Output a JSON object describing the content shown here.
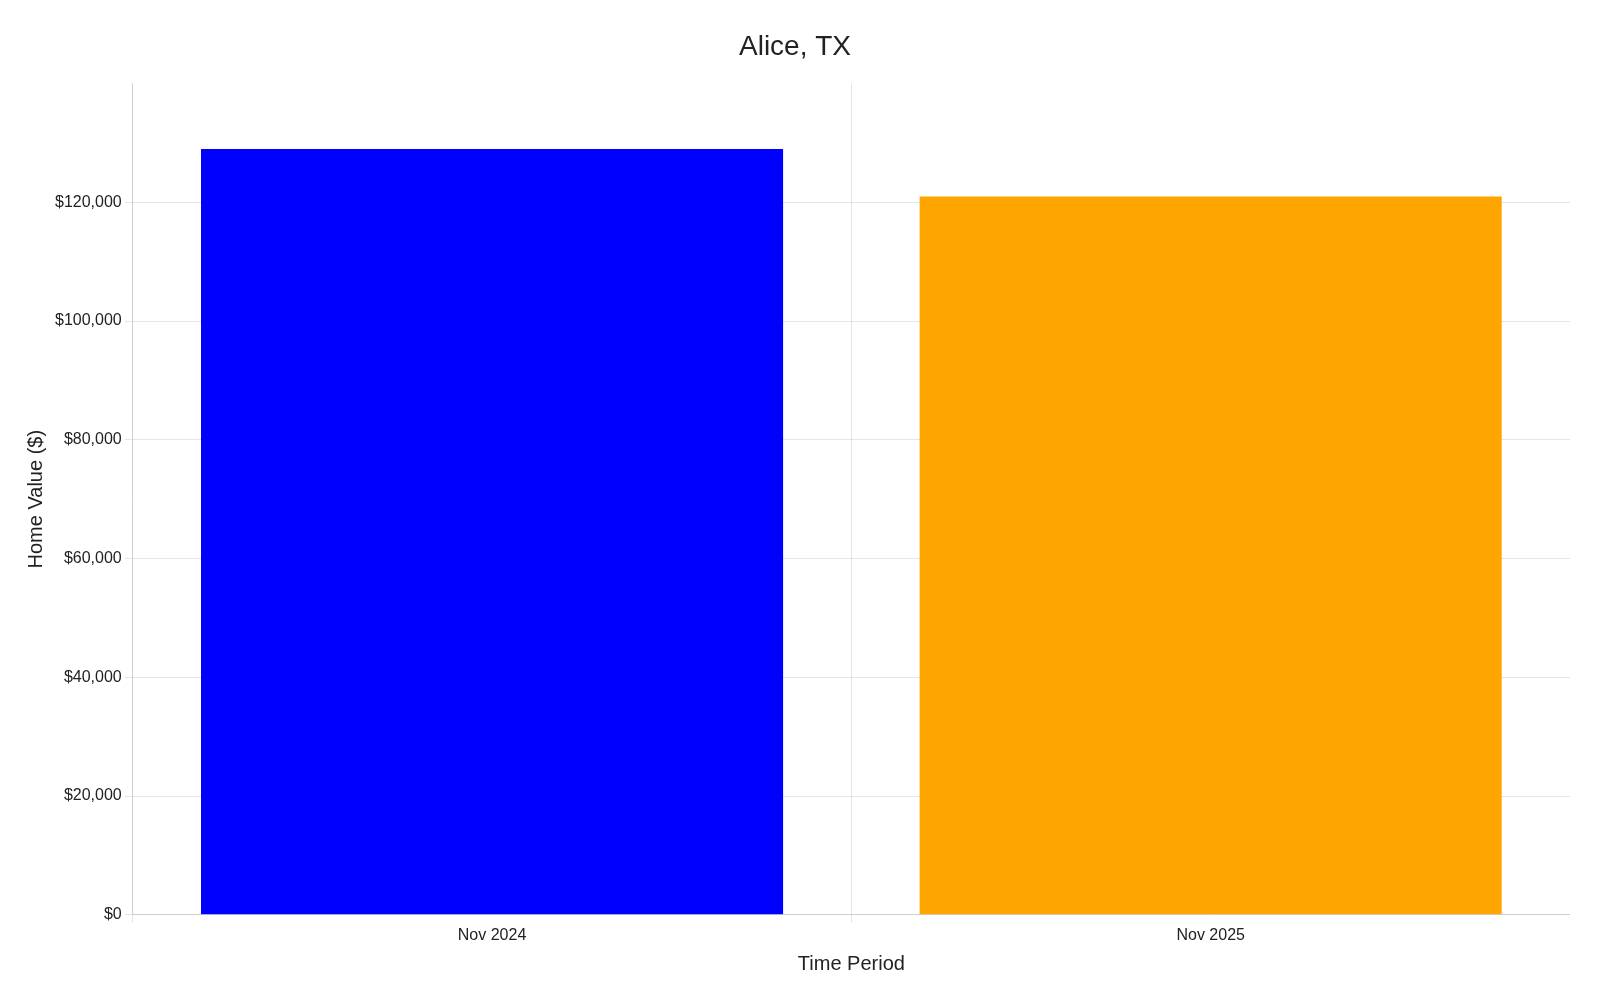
{
  "chart_data": {
    "type": "bar",
    "title": "Alice, TX",
    "xlabel": "Time Period",
    "ylabel": "Home Value ($)",
    "categories": [
      "Nov 2024",
      "Nov 2025"
    ],
    "values": [
      129000,
      121000
    ],
    "colors": [
      "#0000FF",
      "#FFA500"
    ],
    "ylim": [
      0,
      140000
    ],
    "yticks": [
      {
        "value": 0,
        "label": "$0"
      },
      {
        "value": 20000,
        "label": "$20,000"
      },
      {
        "value": 40000,
        "label": "$40,000"
      },
      {
        "value": 60000,
        "label": "$60,000"
      },
      {
        "value": 80000,
        "label": "$80,000"
      },
      {
        "value": 100000,
        "label": "$100,000"
      },
      {
        "value": 120000,
        "label": "$120,000"
      }
    ],
    "grid": true
  }
}
